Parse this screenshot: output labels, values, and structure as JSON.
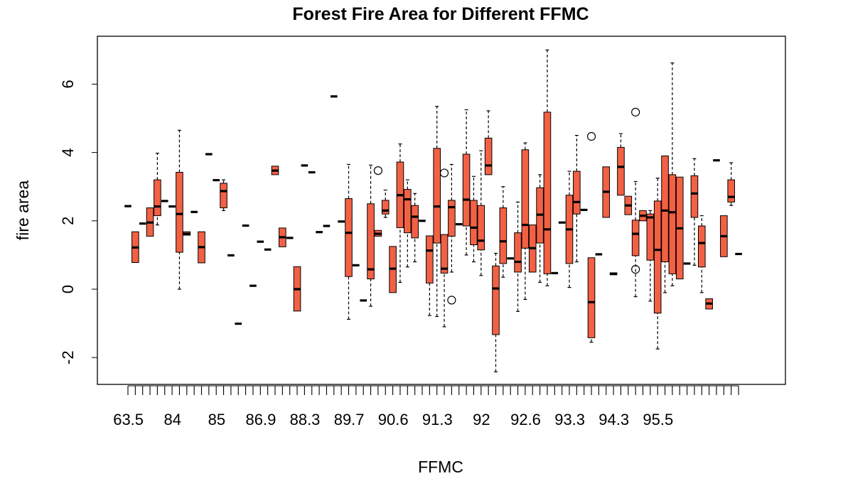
{
  "chart_data": {
    "type": "box",
    "title": "Forest Fire Area for Different FFMC",
    "xlabel": "FFMC",
    "ylabel": "fire area",
    "y_ticks": [
      "-2",
      "0",
      "2",
      "4",
      "6"
    ],
    "y_tick_values": [
      -2,
      0,
      2,
      4,
      6
    ],
    "ylim": [
      -2.8,
      7.3
    ],
    "x_tick_labels_shown": [
      "63.5",
      "84",
      "85",
      "86.9",
      "88.3",
      "89.7",
      "90.6",
      "91.3",
      "92",
      "92.6",
      "93.3",
      "94.3",
      "95.5"
    ],
    "box_color": "#f26144",
    "grid": false,
    "legend": "none",
    "boxes": [
      {
        "i": 0,
        "stats": [
          2.43,
          2.43,
          2.43,
          2.43,
          2.43
        ]
      },
      {
        "i": 1,
        "stats": [
          0.78,
          0.78,
          1.22,
          1.68,
          1.68
        ]
      },
      {
        "i": 2,
        "stats": [
          1.92,
          1.92,
          1.92,
          1.92,
          1.92
        ]
      },
      {
        "i": 3,
        "stats": [
          1.55,
          1.55,
          1.95,
          2.38,
          2.38
        ]
      },
      {
        "i": 4,
        "stats": [
          1.88,
          2.15,
          2.42,
          3.2,
          3.98
        ]
      },
      {
        "i": 5,
        "stats": [
          2.58,
          2.58,
          2.58,
          2.58,
          2.58
        ]
      },
      {
        "i": 6,
        "stats": [
          2.42,
          2.42,
          2.42,
          2.42,
          2.42
        ]
      },
      {
        "i": 7,
        "stats": [
          0.0,
          1.08,
          2.2,
          3.42,
          4.65
        ]
      },
      {
        "i": 8,
        "stats": [
          1.58,
          1.58,
          1.62,
          1.68,
          1.68
        ]
      },
      {
        "i": 9,
        "stats": [
          2.26,
          2.26,
          2.26,
          2.26,
          2.26
        ]
      },
      {
        "i": 10,
        "stats": [
          0.77,
          0.77,
          1.23,
          1.68,
          1.68
        ]
      },
      {
        "i": 11,
        "stats": [
          3.95,
          3.95,
          3.95,
          3.95,
          3.95
        ]
      },
      {
        "i": 12,
        "stats": [
          3.19,
          3.19,
          3.19,
          3.19,
          3.19
        ]
      },
      {
        "i": 13,
        "stats": [
          2.3,
          2.38,
          2.87,
          3.1,
          3.2
        ]
      },
      {
        "i": 14,
        "stats": [
          0.99,
          0.99,
          0.99,
          0.99,
          0.99
        ]
      },
      {
        "i": 15,
        "stats": [
          -1.01,
          -1.01,
          -1.01,
          -1.01,
          -1.01
        ]
      },
      {
        "i": 16,
        "stats": [
          1.86,
          1.86,
          1.86,
          1.86,
          1.86
        ]
      },
      {
        "i": 17,
        "stats": [
          0.1,
          0.1,
          0.1,
          0.1,
          0.1
        ]
      },
      {
        "i": 18,
        "stats": [
          1.39,
          1.39,
          1.39,
          1.39,
          1.39
        ]
      },
      {
        "i": 19,
        "stats": [
          1.16,
          1.16,
          1.16,
          1.16,
          1.16
        ]
      },
      {
        "i": 20,
        "stats": [
          3.35,
          3.35,
          3.47,
          3.6,
          3.6
        ]
      },
      {
        "i": 21,
        "stats": [
          1.24,
          1.24,
          1.52,
          1.79,
          1.79
        ]
      },
      {
        "i": 22,
        "stats": [
          1.5,
          1.5,
          1.5,
          1.5,
          1.5
        ]
      },
      {
        "i": 23,
        "stats": [
          -0.64,
          -0.64,
          0.0,
          0.66,
          0.66
        ]
      },
      {
        "i": 24,
        "stats": [
          3.62,
          3.62,
          3.62,
          3.62,
          3.62
        ]
      },
      {
        "i": 25,
        "stats": [
          3.42,
          3.42,
          3.42,
          3.42,
          3.42
        ]
      },
      {
        "i": 26,
        "stats": [
          1.67,
          1.67,
          1.67,
          1.67,
          1.67
        ]
      },
      {
        "i": 27,
        "stats": [
          1.85,
          1.85,
          1.85,
          1.85,
          1.85
        ]
      },
      {
        "i": 28,
        "stats": [
          5.64,
          5.64,
          5.64,
          5.64,
          5.64
        ]
      },
      {
        "i": 29,
        "stats": [
          1.98,
          1.98,
          1.98,
          1.98,
          1.98
        ]
      },
      {
        "i": 30,
        "stats": [
          -0.88,
          0.37,
          1.65,
          2.65,
          3.65
        ]
      },
      {
        "i": 31,
        "stats": [
          0.7,
          0.7,
          0.7,
          0.7,
          0.7
        ]
      },
      {
        "i": 32,
        "stats": [
          -0.33,
          -0.33,
          -0.33,
          -0.33,
          -0.33
        ]
      },
      {
        "i": 33,
        "stats": [
          -0.5,
          0.3,
          0.58,
          2.5,
          3.63
        ]
      },
      {
        "i": 34,
        "stats": [
          1.55,
          1.55,
          1.62,
          1.72,
          1.72
        ],
        "outliers": [
          3.47
        ]
      },
      {
        "i": 35,
        "stats": [
          2.1,
          2.2,
          2.3,
          2.6,
          2.9
        ]
      },
      {
        "i": 36,
        "stats": [
          -0.1,
          -0.1,
          0.6,
          1.25,
          1.25
        ]
      },
      {
        "i": 37,
        "stats": [
          0.2,
          1.8,
          2.75,
          3.72,
          4.25
        ]
      },
      {
        "i": 38,
        "stats": [
          0.65,
          1.65,
          2.63,
          2.92,
          3.2
        ]
      },
      {
        "i": 39,
        "stats": [
          0.8,
          1.5,
          2.12,
          2.45,
          2.8
        ]
      },
      {
        "i": 40,
        "stats": [
          2.0,
          2.0,
          2.0,
          2.0,
          2.0
        ]
      },
      {
        "i": 41,
        "stats": [
          -0.77,
          0.18,
          1.13,
          1.56,
          1.56
        ]
      },
      {
        "i": 42,
        "stats": [
          -0.8,
          1.35,
          2.42,
          4.12,
          5.35
        ]
      },
      {
        "i": 43,
        "stats": [
          -1.1,
          0.47,
          0.6,
          1.6,
          1.6
        ],
        "outliers": [
          3.4
        ]
      },
      {
        "i": 44,
        "stats": [
          0.5,
          1.55,
          2.4,
          2.6,
          3.65
        ],
        "outliers": [
          -0.32
        ]
      },
      {
        "i": 45,
        "stats": [
          1.9,
          1.9,
          1.9,
          1.9,
          1.9
        ]
      },
      {
        "i": 46,
        "stats": [
          1.0,
          1.85,
          2.62,
          3.95,
          5.25
        ]
      },
      {
        "i": 47,
        "stats": [
          0.8,
          1.3,
          1.8,
          2.6,
          3.3
        ]
      },
      {
        "i": 48,
        "stats": [
          0.4,
          1.15,
          1.42,
          2.45,
          4.05
        ]
      },
      {
        "i": 49,
        "stats": [
          3.35,
          3.35,
          3.62,
          4.42,
          5.22
        ]
      },
      {
        "i": 50,
        "stats": [
          -2.42,
          -1.33,
          0.02,
          0.68,
          1.05
        ]
      },
      {
        "i": 51,
        "stats": [
          0.35,
          0.75,
          1.4,
          2.38,
          3.0
        ]
      },
      {
        "i": 52,
        "stats": [
          0.9,
          0.9,
          0.9,
          0.9,
          0.9
        ]
      },
      {
        "i": 53,
        "stats": [
          -0.65,
          0.5,
          0.8,
          1.65,
          2.55
        ]
      },
      {
        "i": 54,
        "stats": [
          -0.3,
          1.2,
          1.88,
          4.08,
          4.28
        ]
      },
      {
        "i": 55,
        "stats": [
          0.5,
          0.5,
          1.2,
          1.88,
          1.88
        ]
      },
      {
        "i": 56,
        "stats": [
          0.2,
          1.35,
          2.18,
          2.97,
          3.35
        ]
      },
      {
        "i": 57,
        "stats": [
          0.1,
          0.45,
          1.75,
          5.18,
          7.0
        ]
      },
      {
        "i": 58,
        "stats": [
          0.47,
          0.47,
          0.47,
          0.47,
          0.47
        ]
      },
      {
        "i": 59,
        "stats": [
          1.95,
          1.95,
          1.95,
          1.95,
          1.95
        ]
      },
      {
        "i": 60,
        "stats": [
          0.05,
          0.75,
          1.75,
          2.75,
          3.45
        ]
      },
      {
        "i": 61,
        "stats": [
          0.8,
          2.2,
          2.55,
          3.45,
          4.5
        ]
      },
      {
        "i": 62,
        "stats": [
          2.32,
          2.32,
          2.32,
          2.32,
          2.32
        ]
      },
      {
        "i": 63,
        "stats": [
          -1.55,
          -1.42,
          -0.38,
          0.92,
          0.92
        ],
        "outliers": [
          4.47
        ]
      },
      {
        "i": 64,
        "stats": [
          1.02,
          1.02,
          1.02,
          1.02,
          1.02
        ]
      },
      {
        "i": 65,
        "stats": [
          2.1,
          2.1,
          2.85,
          3.58,
          3.58
        ]
      },
      {
        "i": 66,
        "stats": [
          0.42,
          0.42,
          0.45,
          0.48,
          0.48
        ]
      },
      {
        "i": 67,
        "stats": [
          2.75,
          2.75,
          3.58,
          4.15,
          4.55
        ]
      },
      {
        "i": 68,
        "stats": [
          2.18,
          2.18,
          2.45,
          2.72,
          2.72
        ]
      },
      {
        "i": 69,
        "stats": [
          -0.22,
          0.98,
          1.62,
          2.02,
          3.15
        ],
        "outliers": [
          0.58,
          5.18
        ]
      },
      {
        "i": 70,
        "stats": [
          2.0,
          2.0,
          2.15,
          2.3,
          2.3
        ]
      },
      {
        "i": 71,
        "stats": [
          -0.35,
          0.85,
          2.1,
          2.2,
          2.3
        ]
      },
      {
        "i": 72,
        "stats": [
          -1.75,
          -0.7,
          1.15,
          2.58,
          3.25
        ]
      },
      {
        "i": 73,
        "stats": [
          -0.1,
          0.8,
          2.3,
          3.9,
          3.9
        ]
      },
      {
        "i": 74,
        "stats": [
          0.1,
          0.45,
          2.25,
          3.35,
          6.62
        ]
      },
      {
        "i": 75,
        "stats": [
          0.3,
          0.3,
          1.78,
          3.28,
          3.28
        ]
      },
      {
        "i": 76,
        "stats": [
          0.75,
          0.75,
          0.75,
          0.75,
          0.75
        ]
      },
      {
        "i": 77,
        "stats": [
          0.7,
          2.1,
          2.8,
          3.32,
          3.82
        ]
      },
      {
        "i": 78,
        "stats": [
          -0.1,
          0.65,
          1.35,
          1.85,
          2.15
        ]
      },
      {
        "i": 79,
        "stats": [
          -0.58,
          -0.58,
          -0.42,
          -0.28,
          -0.28
        ]
      },
      {
        "i": 80,
        "stats": [
          3.77,
          3.77,
          3.77,
          3.77,
          3.77
        ]
      },
      {
        "i": 81,
        "stats": [
          0.95,
          0.95,
          1.55,
          2.15,
          2.15
        ]
      },
      {
        "i": 82,
        "stats": [
          2.45,
          2.55,
          2.7,
          3.2,
          3.7
        ]
      },
      {
        "i": 83,
        "stats": [
          1.03,
          1.03,
          1.03,
          1.03,
          1.03
        ]
      }
    ]
  }
}
